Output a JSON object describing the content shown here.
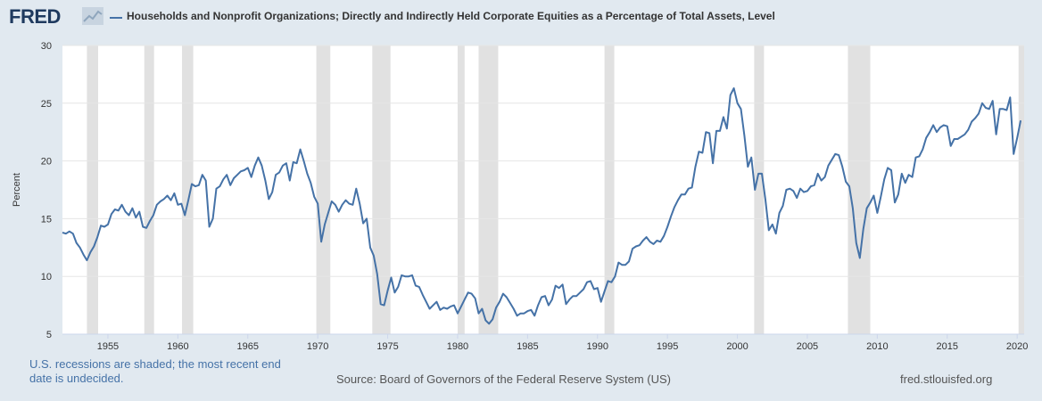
{
  "header": {
    "logo_text": "FRED",
    "series_title": "Households and Nonprofit Organizations; Directly and Indirectly Held Corporate Equities as a Percentage of Total Assets, Level",
    "series_color": "#4572a7"
  },
  "footer": {
    "recession_note": "U.S. recessions are shaded; the most recent end date is undecided.",
    "source": "Source: Board of Governors of the Federal Reserve System (US)",
    "site": "fred.stlouisfed.org"
  },
  "chart_data": {
    "type": "line",
    "title": "",
    "xlabel": "",
    "ylabel": "Percent",
    "xlim": [
      1951.75,
      2020.5
    ],
    "ylim": [
      5,
      30
    ],
    "yticks": [
      5,
      10,
      15,
      20,
      25,
      30
    ],
    "xticks": [
      1955,
      1960,
      1965,
      1970,
      1975,
      1980,
      1985,
      1990,
      1995,
      2000,
      2005,
      2010,
      2015,
      2020
    ],
    "grid": "horizontal",
    "line_color": "#4572a7",
    "recession_color": "#e1e1e1",
    "recessions": [
      [
        1953.5,
        1954.3
      ],
      [
        1957.6,
        1958.3
      ],
      [
        1960.3,
        1961.1
      ],
      [
        1969.9,
        1970.9
      ],
      [
        1973.9,
        1975.2
      ],
      [
        1980.0,
        1980.5
      ],
      [
        1981.5,
        1982.9
      ],
      [
        1990.5,
        1991.2
      ],
      [
        2001.2,
        2001.9
      ],
      [
        2007.9,
        2009.5
      ],
      [
        2020.1,
        2020.5
      ]
    ],
    "series": [
      {
        "values": [
          [
            1951.75,
            13.8
          ],
          [
            1952.0,
            13.7
          ],
          [
            1952.25,
            13.9
          ],
          [
            1952.5,
            13.7
          ],
          [
            1952.75,
            12.9
          ],
          [
            1953.0,
            12.5
          ],
          [
            1953.25,
            11.9
          ],
          [
            1953.5,
            11.4
          ],
          [
            1953.75,
            12.1
          ],
          [
            1954.0,
            12.6
          ],
          [
            1954.25,
            13.4
          ],
          [
            1954.5,
            14.4
          ],
          [
            1954.75,
            14.3
          ],
          [
            1955.0,
            14.5
          ],
          [
            1955.25,
            15.4
          ],
          [
            1955.5,
            15.8
          ],
          [
            1955.75,
            15.7
          ],
          [
            1956.0,
            16.2
          ],
          [
            1956.25,
            15.6
          ],
          [
            1956.5,
            15.3
          ],
          [
            1956.75,
            15.9
          ],
          [
            1957.0,
            15.1
          ],
          [
            1957.25,
            15.6
          ],
          [
            1957.5,
            14.3
          ],
          [
            1957.75,
            14.2
          ],
          [
            1958.0,
            14.8
          ],
          [
            1958.25,
            15.3
          ],
          [
            1958.5,
            16.2
          ],
          [
            1958.75,
            16.5
          ],
          [
            1959.0,
            16.7
          ],
          [
            1959.25,
            17.0
          ],
          [
            1959.5,
            16.6
          ],
          [
            1959.75,
            17.2
          ],
          [
            1960.0,
            16.2
          ],
          [
            1960.25,
            16.3
          ],
          [
            1960.5,
            15.3
          ],
          [
            1960.75,
            16.6
          ],
          [
            1961.0,
            18.0
          ],
          [
            1961.25,
            17.8
          ],
          [
            1961.5,
            17.9
          ],
          [
            1961.75,
            18.8
          ],
          [
            1962.0,
            18.3
          ],
          [
            1962.25,
            14.3
          ],
          [
            1962.5,
            15.0
          ],
          [
            1962.75,
            17.6
          ],
          [
            1963.0,
            17.8
          ],
          [
            1963.25,
            18.4
          ],
          [
            1963.5,
            18.8
          ],
          [
            1963.75,
            17.9
          ],
          [
            1964.0,
            18.5
          ],
          [
            1964.25,
            18.8
          ],
          [
            1964.5,
            19.1
          ],
          [
            1964.75,
            19.2
          ],
          [
            1965.0,
            19.4
          ],
          [
            1965.25,
            18.6
          ],
          [
            1965.5,
            19.6
          ],
          [
            1965.75,
            20.3
          ],
          [
            1966.0,
            19.6
          ],
          [
            1966.25,
            18.3
          ],
          [
            1966.5,
            16.7
          ],
          [
            1966.75,
            17.3
          ],
          [
            1967.0,
            18.8
          ],
          [
            1967.25,
            19.0
          ],
          [
            1967.5,
            19.6
          ],
          [
            1967.75,
            19.8
          ],
          [
            1968.0,
            18.3
          ],
          [
            1968.25,
            19.9
          ],
          [
            1968.5,
            19.8
          ],
          [
            1968.75,
            21.0
          ],
          [
            1969.0,
            20.0
          ],
          [
            1969.25,
            18.9
          ],
          [
            1969.5,
            18.1
          ],
          [
            1969.75,
            16.9
          ],
          [
            1970.0,
            16.3
          ],
          [
            1970.25,
            13.0
          ],
          [
            1970.5,
            14.5
          ],
          [
            1970.75,
            15.5
          ],
          [
            1971.0,
            16.5
          ],
          [
            1971.25,
            16.2
          ],
          [
            1971.5,
            15.6
          ],
          [
            1971.75,
            16.2
          ],
          [
            1972.0,
            16.6
          ],
          [
            1972.25,
            16.3
          ],
          [
            1972.5,
            16.2
          ],
          [
            1972.75,
            17.6
          ],
          [
            1973.0,
            16.3
          ],
          [
            1973.25,
            14.6
          ],
          [
            1973.5,
            15.0
          ],
          [
            1973.75,
            12.5
          ],
          [
            1974.0,
            11.8
          ],
          [
            1974.25,
            10.2
          ],
          [
            1974.5,
            7.6
          ],
          [
            1974.75,
            7.5
          ],
          [
            1975.0,
            8.8
          ],
          [
            1975.25,
            9.9
          ],
          [
            1975.5,
            8.6
          ],
          [
            1975.75,
            9.1
          ],
          [
            1976.0,
            10.1
          ],
          [
            1976.25,
            10.0
          ],
          [
            1976.5,
            10.0
          ],
          [
            1976.75,
            10.1
          ],
          [
            1977.0,
            9.2
          ],
          [
            1977.25,
            9.1
          ],
          [
            1977.5,
            8.4
          ],
          [
            1977.75,
            7.8
          ],
          [
            1978.0,
            7.2
          ],
          [
            1978.25,
            7.5
          ],
          [
            1978.5,
            7.8
          ],
          [
            1978.75,
            7.1
          ],
          [
            1979.0,
            7.3
          ],
          [
            1979.25,
            7.2
          ],
          [
            1979.5,
            7.4
          ],
          [
            1979.75,
            7.5
          ],
          [
            1980.0,
            6.8
          ],
          [
            1980.25,
            7.4
          ],
          [
            1980.5,
            8.0
          ],
          [
            1980.75,
            8.6
          ],
          [
            1981.0,
            8.5
          ],
          [
            1981.25,
            8.1
          ],
          [
            1981.5,
            6.8
          ],
          [
            1981.75,
            7.2
          ],
          [
            1982.0,
            6.2
          ],
          [
            1982.25,
            5.9
          ],
          [
            1982.5,
            6.3
          ],
          [
            1982.75,
            7.3
          ],
          [
            1983.0,
            7.8
          ],
          [
            1983.25,
            8.5
          ],
          [
            1983.5,
            8.2
          ],
          [
            1983.75,
            7.7
          ],
          [
            1984.0,
            7.2
          ],
          [
            1984.25,
            6.6
          ],
          [
            1984.5,
            6.8
          ],
          [
            1984.75,
            6.8
          ],
          [
            1985.0,
            7.0
          ],
          [
            1985.25,
            7.1
          ],
          [
            1985.5,
            6.6
          ],
          [
            1985.75,
            7.5
          ],
          [
            1986.0,
            8.2
          ],
          [
            1986.25,
            8.3
          ],
          [
            1986.5,
            7.5
          ],
          [
            1986.75,
            8.0
          ],
          [
            1987.0,
            9.2
          ],
          [
            1987.25,
            9.0
          ],
          [
            1987.5,
            9.3
          ],
          [
            1987.75,
            7.6
          ],
          [
            1988.0,
            8.0
          ],
          [
            1988.25,
            8.3
          ],
          [
            1988.5,
            8.3
          ],
          [
            1988.75,
            8.6
          ],
          [
            1989.0,
            8.9
          ],
          [
            1989.25,
            9.5
          ],
          [
            1989.5,
            9.6
          ],
          [
            1989.75,
            8.9
          ],
          [
            1990.0,
            9.0
          ],
          [
            1990.25,
            7.8
          ],
          [
            1990.5,
            8.7
          ],
          [
            1990.75,
            9.6
          ],
          [
            1991.0,
            9.5
          ],
          [
            1991.25,
            10.0
          ],
          [
            1991.5,
            11.2
          ],
          [
            1991.75,
            11.0
          ],
          [
            1992.0,
            11.0
          ],
          [
            1992.25,
            11.3
          ],
          [
            1992.5,
            12.4
          ],
          [
            1992.75,
            12.6
          ],
          [
            1993.0,
            12.7
          ],
          [
            1993.25,
            13.1
          ],
          [
            1993.5,
            13.4
          ],
          [
            1993.75,
            13.0
          ],
          [
            1994.0,
            12.8
          ],
          [
            1994.25,
            13.1
          ],
          [
            1994.5,
            13.0
          ],
          [
            1994.75,
            13.5
          ],
          [
            1995.0,
            14.3
          ],
          [
            1995.25,
            15.2
          ],
          [
            1995.5,
            16.0
          ],
          [
            1995.75,
            16.6
          ],
          [
            1996.0,
            17.1
          ],
          [
            1996.25,
            17.1
          ],
          [
            1996.5,
            17.6
          ],
          [
            1996.75,
            17.7
          ],
          [
            1997.0,
            19.5
          ],
          [
            1997.25,
            20.8
          ],
          [
            1997.5,
            20.7
          ],
          [
            1997.75,
            22.5
          ],
          [
            1998.0,
            22.4
          ],
          [
            1998.25,
            19.8
          ],
          [
            1998.5,
            22.6
          ],
          [
            1998.75,
            22.6
          ],
          [
            1999.0,
            23.8
          ],
          [
            1999.25,
            22.8
          ],
          [
            1999.5,
            25.7
          ],
          [
            1999.75,
            26.3
          ],
          [
            2000.0,
            25.0
          ],
          [
            2000.25,
            24.5
          ],
          [
            2000.5,
            22.2
          ],
          [
            2000.75,
            19.5
          ],
          [
            2001.0,
            20.3
          ],
          [
            2001.25,
            17.5
          ],
          [
            2001.5,
            18.9
          ],
          [
            2001.75,
            18.9
          ],
          [
            2002.0,
            16.7
          ],
          [
            2002.25,
            14.0
          ],
          [
            2002.5,
            14.5
          ],
          [
            2002.75,
            13.7
          ],
          [
            2003.0,
            15.5
          ],
          [
            2003.25,
            16.1
          ],
          [
            2003.5,
            17.5
          ],
          [
            2003.75,
            17.6
          ],
          [
            2004.0,
            17.4
          ],
          [
            2004.25,
            16.8
          ],
          [
            2004.5,
            17.6
          ],
          [
            2004.75,
            17.3
          ],
          [
            2005.0,
            17.4
          ],
          [
            2005.25,
            17.8
          ],
          [
            2005.5,
            17.9
          ],
          [
            2005.75,
            18.9
          ],
          [
            2006.0,
            18.3
          ],
          [
            2006.25,
            18.6
          ],
          [
            2006.5,
            19.6
          ],
          [
            2006.75,
            20.1
          ],
          [
            2007.0,
            20.6
          ],
          [
            2007.25,
            20.5
          ],
          [
            2007.5,
            19.5
          ],
          [
            2007.75,
            18.2
          ],
          [
            2008.0,
            17.8
          ],
          [
            2008.25,
            15.9
          ],
          [
            2008.5,
            12.9
          ],
          [
            2008.75,
            11.6
          ],
          [
            2009.0,
            14.1
          ],
          [
            2009.25,
            15.9
          ],
          [
            2009.5,
            16.4
          ],
          [
            2009.75,
            17.0
          ],
          [
            2010.0,
            15.5
          ],
          [
            2010.25,
            16.9
          ],
          [
            2010.5,
            18.4
          ],
          [
            2010.75,
            19.4
          ],
          [
            2011.0,
            19.2
          ],
          [
            2011.25,
            16.4
          ],
          [
            2011.5,
            17.1
          ],
          [
            2011.75,
            18.9
          ],
          [
            2012.0,
            18.1
          ],
          [
            2012.25,
            18.8
          ],
          [
            2012.5,
            18.6
          ],
          [
            2012.75,
            20.3
          ],
          [
            2013.0,
            20.4
          ],
          [
            2013.25,
            21.0
          ],
          [
            2013.5,
            22.0
          ],
          [
            2013.75,
            22.5
          ],
          [
            2014.0,
            23.1
          ],
          [
            2014.25,
            22.5
          ],
          [
            2014.5,
            22.9
          ],
          [
            2014.75,
            23.1
          ],
          [
            2015.0,
            23.0
          ],
          [
            2015.25,
            21.3
          ],
          [
            2015.5,
            21.9
          ],
          [
            2015.75,
            21.9
          ],
          [
            2016.0,
            22.1
          ],
          [
            2016.25,
            22.3
          ],
          [
            2016.5,
            22.7
          ],
          [
            2016.75,
            23.4
          ],
          [
            2017.0,
            23.7
          ],
          [
            2017.25,
            24.1
          ],
          [
            2017.5,
            25.0
          ],
          [
            2017.75,
            24.6
          ],
          [
            2018.0,
            24.5
          ],
          [
            2018.25,
            25.2
          ],
          [
            2018.5,
            22.3
          ],
          [
            2018.75,
            24.5
          ],
          [
            2019.0,
            24.5
          ],
          [
            2019.25,
            24.4
          ],
          [
            2019.5,
            25.5
          ],
          [
            2019.75,
            20.6
          ],
          [
            2020.0,
            22.0
          ],
          [
            2020.25,
            23.5
          ]
        ]
      }
    ]
  }
}
